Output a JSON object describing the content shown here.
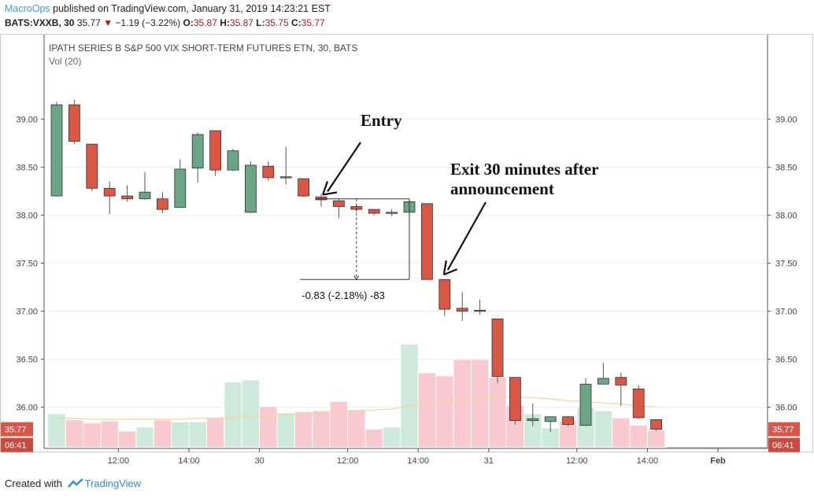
{
  "header": {
    "publisher": "MacroOps",
    "published_text": " published on TradingView.com, January 31, 2019 14:23:21 EST",
    "symbol_interval": "BATS:VXXB, 30",
    "last": "35.77",
    "change_arrow": "▼",
    "change": "−1.19 (−3.22%)",
    "o_label": "O:",
    "o_val": "35.87",
    "h_label": "H:",
    "h_val": "35.87",
    "l_label": "L:",
    "l_val": "35.75",
    "c_label": "C:",
    "c_val": "35.77"
  },
  "footer": {
    "created_with": "Created with",
    "brand": "TradingView"
  },
  "colors": {
    "up": "#6aa585",
    "down": "#d95745",
    "vol_up": "#cde9dc",
    "vol_down": "#f8c9cf",
    "ma": "#f4d49a",
    "price_badge": "#d9574a",
    "grid": "#efefef"
  },
  "chart_data": {
    "type": "candlestick",
    "title": "IPATH SERIES B S&P 500 VIX SHORT-TERM FUTURES ETN, 30, BATS",
    "volume_indicator_label": "Vol (20)",
    "y_ticks": [
      "39.00",
      "38.50",
      "38.00",
      "37.50",
      "37.00",
      "36.50",
      "36.00"
    ],
    "ylim": [
      35.57,
      39.52
    ],
    "x_ticks": [
      {
        "index": 3.5,
        "label": "12:00"
      },
      {
        "index": 7.5,
        "label": "14:00"
      },
      {
        "index": 11.5,
        "label": "30"
      },
      {
        "index": 16.5,
        "label": "12:00"
      },
      {
        "index": 20.5,
        "label": "14:00"
      },
      {
        "index": 24.5,
        "label": "31"
      },
      {
        "index": 29.5,
        "label": "12:00"
      },
      {
        "index": 33.5,
        "label": "14:00"
      },
      {
        "index": 37.5,
        "label": "Feb"
      }
    ],
    "x_slots": 42,
    "last_price_label": "35.77",
    "countdown_label": "06:41",
    "candles": [
      {
        "o": 38.2,
        "h": 39.18,
        "l": 38.19,
        "c": 39.15
      },
      {
        "o": 39.15,
        "h": 39.2,
        "l": 38.74,
        "c": 38.77
      },
      {
        "o": 38.74,
        "h": 38.74,
        "l": 38.25,
        "c": 38.28
      },
      {
        "o": 38.28,
        "h": 38.35,
        "l": 38.01,
        "c": 38.2
      },
      {
        "o": 38.2,
        "h": 38.31,
        "l": 38.14,
        "c": 38.17
      },
      {
        "o": 38.17,
        "h": 38.45,
        "l": 38.16,
        "c": 38.24
      },
      {
        "o": 38.17,
        "h": 38.24,
        "l": 38.02,
        "c": 38.06
      },
      {
        "o": 38.08,
        "h": 38.58,
        "l": 38.08,
        "c": 38.48
      },
      {
        "o": 38.49,
        "h": 38.86,
        "l": 38.34,
        "c": 38.84
      },
      {
        "o": 38.88,
        "h": 38.88,
        "l": 38.41,
        "c": 38.47
      },
      {
        "o": 38.47,
        "h": 38.69,
        "l": 38.46,
        "c": 38.67
      },
      {
        "o": 38.03,
        "h": 38.56,
        "l": 38.02,
        "c": 38.52
      },
      {
        "o": 38.51,
        "h": 38.56,
        "l": 38.36,
        "c": 38.39
      },
      {
        "o": 38.4,
        "h": 38.71,
        "l": 38.32,
        "c": 38.4
      },
      {
        "o": 38.38,
        "h": 38.38,
        "l": 38.19,
        "c": 38.2
      },
      {
        "o": 38.19,
        "h": 38.22,
        "l": 38.09,
        "c": 38.16
      },
      {
        "o": 38.15,
        "h": 38.17,
        "l": 37.97,
        "c": 38.09
      },
      {
        "o": 38.09,
        "h": 38.11,
        "l": 38.03,
        "c": 38.06
      },
      {
        "o": 38.06,
        "h": 38.06,
        "l": 38.0,
        "c": 38.02
      },
      {
        "o": 38.02,
        "h": 38.06,
        "l": 37.99,
        "c": 38.03
      },
      {
        "o": 38.03,
        "h": 38.14,
        "l": 38.01,
        "c": 38.14
      },
      {
        "o": 38.12,
        "h": 38.12,
        "l": 37.33,
        "c": 37.33
      },
      {
        "o": 37.33,
        "h": 37.33,
        "l": 36.95,
        "c": 37.02
      },
      {
        "o": 37.03,
        "h": 37.2,
        "l": 36.9,
        "c": 37.0
      },
      {
        "o": 37.01,
        "h": 37.12,
        "l": 36.96,
        "c": 37.0
      },
      {
        "o": 36.92,
        "h": 36.92,
        "l": 36.25,
        "c": 36.32
      },
      {
        "o": 36.31,
        "h": 36.31,
        "l": 35.82,
        "c": 35.86
      },
      {
        "o": 35.86,
        "h": 36.04,
        "l": 35.8,
        "c": 35.88
      },
      {
        "o": 35.85,
        "h": 35.9,
        "l": 35.74,
        "c": 35.9
      },
      {
        "o": 35.9,
        "h": 35.91,
        "l": 35.8,
        "c": 35.82
      },
      {
        "o": 35.81,
        "h": 36.3,
        "l": 35.81,
        "c": 36.24
      },
      {
        "o": 36.24,
        "h": 36.46,
        "l": 36.24,
        "c": 36.3
      },
      {
        "o": 36.31,
        "h": 36.36,
        "l": 36.01,
        "c": 36.23
      },
      {
        "o": 36.19,
        "h": 36.23,
        "l": 35.88,
        "c": 35.89
      },
      {
        "o": 35.87,
        "h": 35.87,
        "l": 35.75,
        "c": 35.77
      }
    ],
    "volume": [
      0.32,
      0.26,
      0.23,
      0.25,
      0.15,
      0.19,
      0.26,
      0.24,
      0.24,
      0.28,
      0.63,
      0.65,
      0.39,
      0.33,
      0.34,
      0.35,
      0.44,
      0.36,
      0.17,
      0.19,
      1.0,
      0.72,
      0.69,
      0.85,
      0.85,
      0.68,
      0.4,
      0.32,
      0.18,
      0.25,
      0.38,
      0.35,
      0.28,
      0.21,
      0.16
    ],
    "volume_ma": [
      0.28,
      0.28,
      0.27,
      0.27,
      0.27,
      0.27,
      0.27,
      0.27,
      0.28,
      0.28,
      0.29,
      0.3,
      0.31,
      0.31,
      0.32,
      0.33,
      0.34,
      0.35,
      0.36,
      0.37,
      0.4,
      0.42,
      0.44,
      0.46,
      0.48,
      0.49,
      0.49,
      0.48,
      0.47,
      0.45,
      0.44,
      0.43,
      0.42,
      0.4,
      0.39
    ],
    "measure": {
      "from_index": 15,
      "to_index": 20,
      "price_high": 38.17,
      "price_low": 37.33,
      "label": "-0.83 (-2.18%) -83"
    },
    "annotations": [
      {
        "text": "Entry",
        "arrow_to_index": 15,
        "arrow_to_price": 38.18
      },
      {
        "text": "Exit 30 minutes after",
        "text2": "announcement",
        "arrow_to_index": 22,
        "arrow_to_price": 37.38
      }
    ]
  }
}
